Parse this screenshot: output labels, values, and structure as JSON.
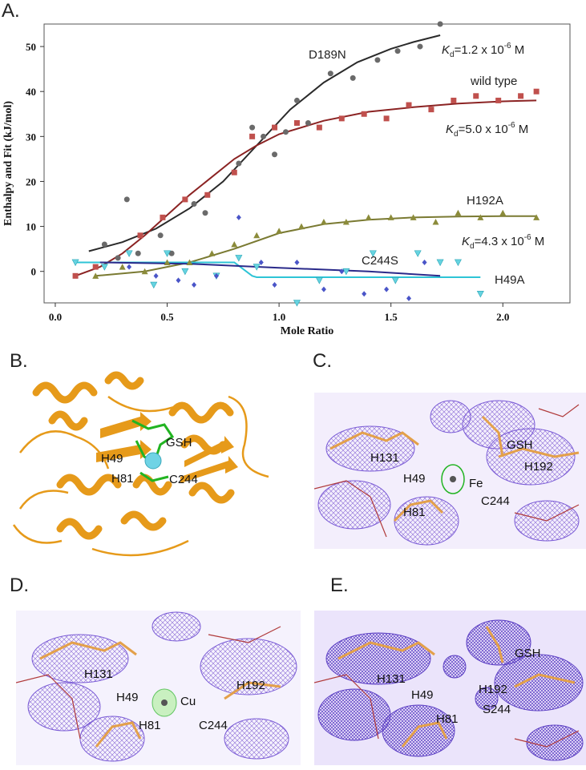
{
  "panels": {
    "a": "A.",
    "b": "B.",
    "c": "C.",
    "d": "D.",
    "e": "E."
  },
  "chart_data": {
    "type": "scatter",
    "title": "",
    "xlabel": "Mole Ratio",
    "ylabel": "Enthalpy and Fit (kJ/mol)",
    "xlim": [
      -0.05,
      2.3
    ],
    "ylim": [
      -7,
      55
    ],
    "xticks": [
      0.0,
      0.5,
      1.0,
      1.5,
      2.0
    ],
    "xtick_labels": [
      "0.0",
      "0.5",
      "1.0",
      "1.5",
      "2.0"
    ],
    "yticks": [
      0,
      10,
      20,
      30,
      40,
      50
    ],
    "ytick_labels": [
      "0",
      "10",
      "20",
      "30",
      "40",
      "50"
    ],
    "grid": false,
    "series": [
      {
        "name": "D189N",
        "marker": "sphere",
        "color": "#6a6a6a",
        "fit_color": "#2a2a2a",
        "x": [
          0.22,
          0.28,
          0.32,
          0.37,
          0.47,
          0.52,
          0.62,
          0.67,
          0.82,
          0.88,
          0.93,
          0.98,
          1.03,
          1.08,
          1.13,
          1.23,
          1.33,
          1.44,
          1.53,
          1.63,
          1.72
        ],
        "y": [
          6,
          3,
          16,
          4,
          8,
          4,
          15,
          13,
          24,
          32,
          30,
          26,
          31,
          38,
          33,
          44,
          43,
          47,
          49,
          50,
          55
        ],
        "fit_x": [
          0.15,
          0.3,
          0.45,
          0.6,
          0.75,
          0.9,
          1.05,
          1.2,
          1.35,
          1.5,
          1.6,
          1.72
        ],
        "fit_y": [
          4.5,
          6.5,
          9.5,
          14,
          20,
          28,
          36,
          42,
          46.5,
          49.5,
          51,
          52.5
        ]
      },
      {
        "name": "wild type",
        "marker": "square",
        "color": "#c0504d",
        "fit_color": "#8b2323",
        "x": [
          0.09,
          0.18,
          0.38,
          0.48,
          0.58,
          0.68,
          0.8,
          0.88,
          0.98,
          1.08,
          1.18,
          1.28,
          1.38,
          1.48,
          1.58,
          1.68,
          1.78,
          1.88,
          1.98,
          2.08,
          2.15
        ],
        "y": [
          -1,
          1,
          8,
          12,
          16,
          17,
          22,
          30,
          32,
          33,
          32,
          34,
          35,
          34,
          37,
          36,
          38,
          39,
          38,
          39,
          40
        ],
        "fit_x": [
          0.09,
          0.2,
          0.3,
          0.4,
          0.5,
          0.6,
          0.7,
          0.8,
          0.9,
          1.0,
          1.2,
          1.4,
          1.6,
          1.8,
          2.0,
          2.15
        ],
        "fit_y": [
          -1,
          1,
          4,
          8,
          12.5,
          17,
          21,
          25,
          28,
          30.5,
          33.5,
          35.5,
          36.5,
          37.3,
          37.8,
          38
        ]
      },
      {
        "name": "H192A",
        "marker": "triangle",
        "color": "#8b8b3a",
        "fit_color": "#7a7a32",
        "x": [
          0.18,
          0.3,
          0.4,
          0.5,
          0.6,
          0.7,
          0.8,
          0.9,
          1.0,
          1.1,
          1.2,
          1.3,
          1.4,
          1.5,
          1.6,
          1.7,
          1.8,
          1.9,
          2.0,
          2.15
        ],
        "y": [
          -1,
          1,
          0,
          2,
          2,
          4,
          6,
          8,
          9,
          10,
          11,
          11,
          12,
          12,
          12,
          11,
          13,
          12,
          13,
          12
        ],
        "fit_x": [
          0.18,
          0.4,
          0.6,
          0.8,
          1.0,
          1.2,
          1.4,
          1.6,
          1.8,
          2.0,
          2.15
        ],
        "fit_y": [
          -1,
          0,
          2,
          5,
          8.5,
          10.5,
          11.5,
          12,
          12.2,
          12.3,
          12.3
        ]
      },
      {
        "name": "C244S",
        "marker": "triangle-down",
        "color": "#66d3e0",
        "fit_color": "#2ec4d6",
        "x": [
          0.09,
          0.22,
          0.33,
          0.44,
          0.5,
          0.58,
          0.72,
          0.82,
          0.9,
          1.08,
          1.18,
          1.3,
          1.42,
          1.52,
          1.62,
          1.72,
          1.8,
          1.9
        ],
        "y": [
          2,
          1,
          4,
          -3,
          4,
          0,
          -1,
          3,
          1,
          -7,
          -2,
          0,
          4,
          -2,
          4,
          2,
          2,
          -5
        ],
        "fit_x": [
          0.09,
          0.8,
          0.88,
          0.9,
          1.9
        ],
        "fit_y": [
          2,
          2,
          -1,
          -1.3,
          -1.3
        ]
      },
      {
        "name": "H49A",
        "marker": "diamond",
        "color": "#4a55c8",
        "fit_color": "#2a2a8a",
        "x": [
          0.33,
          0.45,
          0.55,
          0.62,
          0.72,
          0.82,
          0.92,
          0.98,
          1.08,
          1.2,
          1.28,
          1.38,
          1.48,
          1.58,
          1.65
        ],
        "y": [
          1,
          -1,
          -2,
          -3,
          -1,
          12,
          2,
          -3,
          2,
          -4,
          0,
          -5,
          -4,
          -6,
          2
        ],
        "fit_x": [
          0.2,
          0.6,
          1.0,
          1.4,
          1.72
        ],
        "fit_y": [
          2,
          1.7,
          0.8,
          0,
          -1
        ]
      }
    ],
    "annotations": [
      {
        "base": "K",
        "sub": "d",
        "rest": "=1.2 x 10",
        "sup": "-6",
        "unit": " M"
      },
      {
        "base": "K",
        "sub": "d",
        "rest": "=5.0 x 10",
        "sup": "-6",
        "unit": " M"
      },
      {
        "base": "K",
        "sub": "d",
        "rest": "=4.3 x 10",
        "sup": "-6",
        "unit": " M"
      }
    ]
  },
  "structure_labels": {
    "b": [
      "GSH",
      "H49",
      "H81",
      "C244"
    ],
    "c": [
      "H131",
      "H49",
      "Fe",
      "GSH",
      "H192",
      "H81",
      "C244"
    ],
    "d": [
      "H131",
      "H49",
      "Cu",
      "H192",
      "H81",
      "C244"
    ],
    "e": [
      "H131",
      "H49",
      "GSH",
      "H192",
      "S244",
      "H81"
    ]
  },
  "colors": {
    "protein": "#e69a1a",
    "ligand": "#22b422",
    "metal": "#6fd3e5",
    "mesh": "#7a5bd6",
    "ligand_orange": "#e3a04a"
  }
}
